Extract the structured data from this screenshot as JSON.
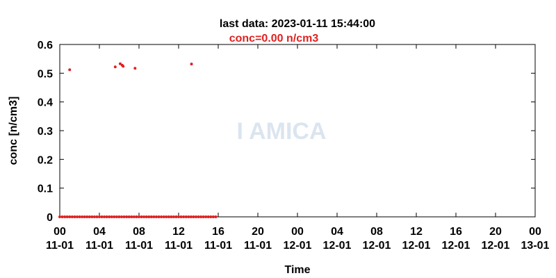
{
  "chart_data": {
    "type": "scatter",
    "title": "last data: 2023-01-11 15:44:00",
    "subtitle": "conc=0.00 n/cm3",
    "subtitle_color": "#e02020",
    "watermark": "I AMICA",
    "xlabel": "Time",
    "ylabel": "conc [n/cm3]",
    "xlim": [
      0,
      48
    ],
    "ylim": [
      0,
      0.6
    ],
    "yticks": [
      0,
      0.1,
      0.2,
      0.3,
      0.4,
      0.5,
      0.6
    ],
    "xticks": [
      {
        "value": 0,
        "label": "00\n11-01"
      },
      {
        "value": 4,
        "label": "04\n11-01"
      },
      {
        "value": 8,
        "label": "08\n11-01"
      },
      {
        "value": 12,
        "label": "12\n11-01"
      },
      {
        "value": 16,
        "label": "16\n11-01"
      },
      {
        "value": 20,
        "label": "20\n11-01"
      },
      {
        "value": 24,
        "label": "00\n12-01"
      },
      {
        "value": 28,
        "label": "04\n12-01"
      },
      {
        "value": 32,
        "label": "08\n12-01"
      },
      {
        "value": 36,
        "label": "12\n12-01"
      },
      {
        "value": 40,
        "label": "16\n12-01"
      },
      {
        "value": 44,
        "label": "20\n12-01"
      },
      {
        "value": 48,
        "label": "00\n13-01"
      }
    ],
    "grid": false,
    "series": [
      {
        "name": "conc",
        "color": "#e02020",
        "x": [
          0,
          0.25,
          0.5,
          0.75,
          1,
          1.25,
          1.5,
          1.75,
          2,
          2.25,
          2.5,
          2.75,
          3,
          3.25,
          3.5,
          3.75,
          4,
          4.25,
          4.5,
          4.75,
          5,
          5.25,
          5.5,
          5.75,
          6,
          6.25,
          6.5,
          6.75,
          7,
          7.25,
          7.5,
          7.75,
          8,
          8.25,
          8.5,
          8.75,
          9,
          9.25,
          9.5,
          9.75,
          10,
          10.25,
          10.5,
          10.75,
          11,
          11.25,
          11.5,
          11.75,
          12,
          12.25,
          12.5,
          12.75,
          13,
          13.25,
          13.5,
          13.75,
          14,
          14.25,
          14.5,
          14.75,
          15,
          15.25,
          15.5,
          15.75,
          1,
          5.6,
          6.1,
          6.3,
          6.4,
          7.6,
          13.3
        ],
        "values": [
          0,
          0,
          0,
          0,
          0,
          0,
          0,
          0,
          0,
          0,
          0,
          0,
          0,
          0,
          0,
          0,
          0,
          0,
          0,
          0,
          0,
          0,
          0,
          0,
          0,
          0,
          0,
          0,
          0,
          0,
          0,
          0,
          0,
          0,
          0,
          0,
          0,
          0,
          0,
          0,
          0,
          0,
          0,
          0,
          0,
          0,
          0,
          0,
          0,
          0,
          0,
          0,
          0,
          0,
          0,
          0,
          0,
          0,
          0,
          0,
          0,
          0,
          0,
          0,
          0.512,
          0.522,
          0.533,
          0.528,
          0.524,
          0.517,
          0.532
        ]
      }
    ]
  }
}
